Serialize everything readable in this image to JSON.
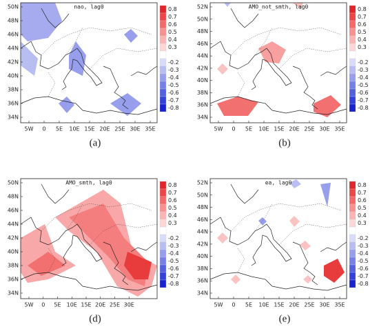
{
  "panels": [
    {
      "title": "nao, lag0",
      "caption": "(a)",
      "lat_labels": [
        "50N",
        "48N",
        "46N",
        "44N",
        "42N",
        "40N",
        "38N",
        "36N",
        "34N"
      ],
      "lon_labels": [
        "5W",
        "0",
        "5E",
        "10E",
        "15E",
        "20E",
        "25E",
        "30E",
        "35E"
      ]
    },
    {
      "title": "AMO_not_smth, lag0",
      "caption": "(b)",
      "lat_labels": [
        "52N",
        "50N",
        "48N",
        "46N",
        "44N",
        "42N",
        "40N",
        "38N",
        "36N",
        "34N"
      ],
      "lon_labels": [
        "5W",
        "0",
        "5E",
        "10E",
        "15E",
        "20E",
        "25E",
        "30E",
        "35E"
      ]
    },
    {
      "title": "AMO_smth, lag0",
      "caption": "(d)",
      "lat_labels": [
        "50N",
        "48N",
        "46N",
        "44N",
        "42N",
        "40N",
        "38N",
        "36N",
        "34N"
      ],
      "lon_labels": [
        "5W",
        "0",
        "5E",
        "10E",
        "15E",
        "20E",
        "25E",
        "30E"
      ]
    },
    {
      "title": "ea, lag0",
      "caption": "(e)",
      "lat_labels": [
        "52N",
        "50N",
        "48N",
        "46N",
        "44N",
        "42N",
        "40N",
        "38N",
        "36N",
        "34N"
      ],
      "lon_labels": [
        "5W",
        "0",
        "5E",
        "10E",
        "15E",
        "20E",
        "25E",
        "30E",
        "35E"
      ]
    }
  ],
  "colorbar_labels": [
    0.8,
    0.7,
    0.6,
    0.5,
    0.4,
    0.3,
    -0.2,
    -0.3,
    -0.4,
    -0.5,
    -0.6,
    -0.7,
    -0.8
  ]
}
